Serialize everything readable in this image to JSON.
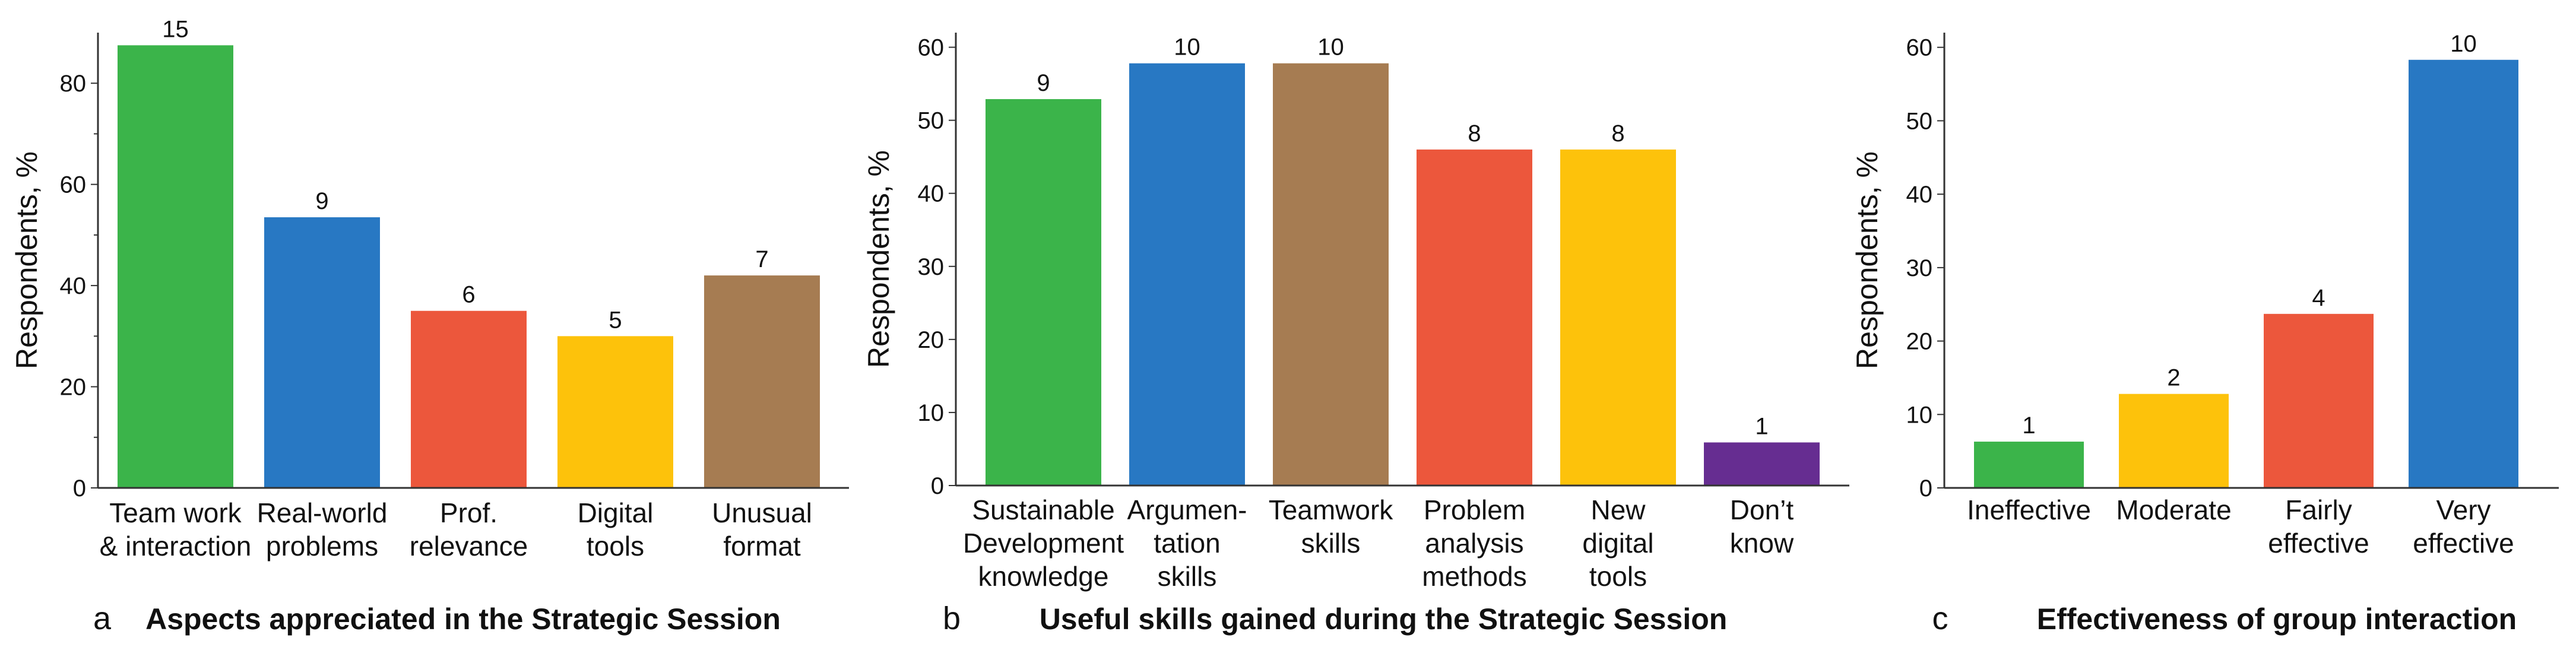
{
  "chart_data": [
    {
      "type": "bar",
      "panel": "a",
      "title": "Aspects appreciated in the Strategic Session",
      "ylabel": "Respondents, %",
      "ylim": [
        0,
        90
      ],
      "yticks": [
        0,
        20,
        40,
        60,
        80
      ],
      "minor_ticks": true,
      "categories": [
        [
          "Team work",
          "& interaction"
        ],
        [
          "Real-world",
          "problems"
        ],
        [
          "Prof.",
          "relevance"
        ],
        [
          "Digital",
          "tools"
        ],
        [
          "Unusual",
          "format"
        ]
      ],
      "values": [
        87.5,
        53.5,
        35,
        30,
        42
      ],
      "data_labels": [
        "15",
        "9",
        "6",
        "5",
        "7"
      ],
      "colors": [
        "#3bb44a",
        "#2878c3",
        "#ec573c",
        "#fdc20b",
        "#a67c52"
      ]
    },
    {
      "type": "bar",
      "panel": "b",
      "title": "Useful skills gained during the Strategic Session",
      "ylabel": "Respondents, %",
      "ylim": [
        0,
        62
      ],
      "yticks": [
        0,
        10,
        20,
        30,
        40,
        50,
        60
      ],
      "minor_ticks": false,
      "categories": [
        [
          "Sustainable",
          "Development",
          "knowledge"
        ],
        [
          "Argumen-",
          "tation",
          "skills"
        ],
        [
          "Teamwork",
          "skills"
        ],
        [
          "Problem",
          "analysis",
          "methods"
        ],
        [
          "New",
          "digital",
          "tools"
        ],
        [
          "Don’t",
          "know"
        ]
      ],
      "values": [
        52.9,
        57.8,
        57.8,
        46,
        46,
        5.9
      ],
      "data_labels": [
        "9",
        "10",
        "10",
        "8",
        "8",
        "1"
      ],
      "colors": [
        "#3bb44a",
        "#2878c3",
        "#a67c52",
        "#ec573c",
        "#fdc20b",
        "#662d91"
      ]
    },
    {
      "type": "bar",
      "panel": "c",
      "title": "Effectiveness of group interaction",
      "ylabel": "Respondents, %",
      "ylim": [
        0,
        62
      ],
      "yticks": [
        0,
        10,
        20,
        30,
        40,
        50,
        60
      ],
      "minor_ticks": false,
      "categories": [
        [
          "Ineffective"
        ],
        [
          "Moderate"
        ],
        [
          "Fairly",
          "effective"
        ],
        [
          "Very",
          "effective"
        ]
      ],
      "values": [
        6.3,
        12.8,
        23.7,
        58.3
      ],
      "data_labels": [
        "1",
        "2",
        "4",
        "10"
      ],
      "colors": [
        "#3bb44a",
        "#fdc20b",
        "#ec573c",
        "#2878c3"
      ]
    }
  ]
}
